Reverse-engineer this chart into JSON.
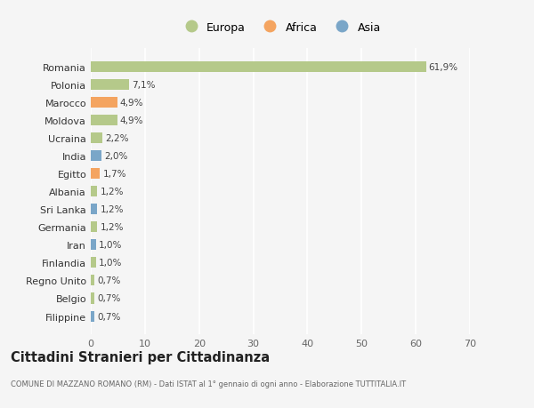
{
  "countries": [
    "Romania",
    "Polonia",
    "Marocco",
    "Moldova",
    "Ucraina",
    "India",
    "Egitto",
    "Albania",
    "Sri Lanka",
    "Germania",
    "Iran",
    "Finlandia",
    "Regno Unito",
    "Belgio",
    "Filippine"
  ],
  "values": [
    61.9,
    7.1,
    4.9,
    4.9,
    2.2,
    2.0,
    1.7,
    1.2,
    1.2,
    1.2,
    1.0,
    1.0,
    0.7,
    0.7,
    0.7
  ],
  "labels": [
    "61,9%",
    "7,1%",
    "4,9%",
    "4,9%",
    "2,2%",
    "2,0%",
    "1,7%",
    "1,2%",
    "1,2%",
    "1,2%",
    "1,0%",
    "1,0%",
    "0,7%",
    "0,7%",
    "0,7%"
  ],
  "continents": [
    "Europa",
    "Europa",
    "Africa",
    "Europa",
    "Europa",
    "Asia",
    "Africa",
    "Europa",
    "Asia",
    "Europa",
    "Asia",
    "Europa",
    "Europa",
    "Europa",
    "Asia"
  ],
  "colors": {
    "Europa": "#b5c98a",
    "Africa": "#f4a460",
    "Asia": "#7aa6c8"
  },
  "bg_color": "#f5f5f5",
  "grid_color": "#ffffff",
  "title": "Cittadini Stranieri per Cittadinanza",
  "subtitle": "COMUNE DI MAZZANO ROMANO (RM) - Dati ISTAT al 1° gennaio di ogni anno - Elaborazione TUTTITALIA.IT",
  "xlim": [
    0,
    70
  ],
  "xticks": [
    0,
    10,
    20,
    30,
    40,
    50,
    60,
    70
  ],
  "bar_height": 0.6
}
